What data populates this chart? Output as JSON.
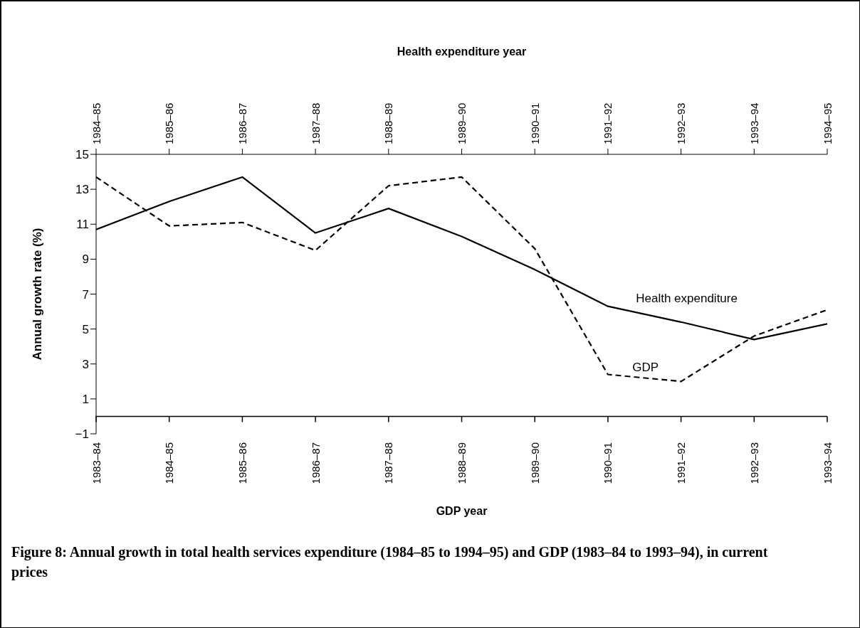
{
  "chart_data": {
    "type": "line",
    "title": "Figure 8:  Annual growth in total health services expenditure (1984–85 to 1994–95) and GDP (1983–84 to 1993–94), in current prices",
    "xlabel": "GDP year",
    "x2label": "Health expenditure year",
    "ylabel": "Annual growth rate (%)",
    "categories": [
      "1983–84",
      "1984–85",
      "1985–86",
      "1986–87",
      "1987–88",
      "1988–89",
      "1989–90",
      "1990–91",
      "1991–92",
      "1992–93",
      "1993–94"
    ],
    "annotations": [
      "1984–85",
      "1985–86",
      "1986–87",
      "1987–88",
      "1988–89",
      "1989–90",
      "1990–91",
      "1991–92",
      "1992–93",
      "1993–94",
      "1994–95"
    ],
    "series": [
      {
        "name": "Health expenditure",
        "color": "#000000",
        "line_style": "solid",
        "values": [
          10.7,
          12.3,
          13.7,
          10.5,
          11.9,
          10.3,
          8.4,
          6.3,
          5.4,
          4.4,
          5.3
        ]
      },
      {
        "name": "GDP",
        "color": "#000000",
        "line_style": "dashed",
        "values": [
          13.7,
          10.9,
          11.1,
          9.5,
          13.2,
          13.7,
          9.6,
          2.4,
          2.0,
          4.6,
          6.1
        ]
      }
    ],
    "ylim": [
      -1,
      15
    ],
    "yticks": [
      -1,
      1,
      3,
      5,
      7,
      9,
      11,
      13,
      15
    ],
    "grid": false,
    "legend": false,
    "marker": "none"
  }
}
